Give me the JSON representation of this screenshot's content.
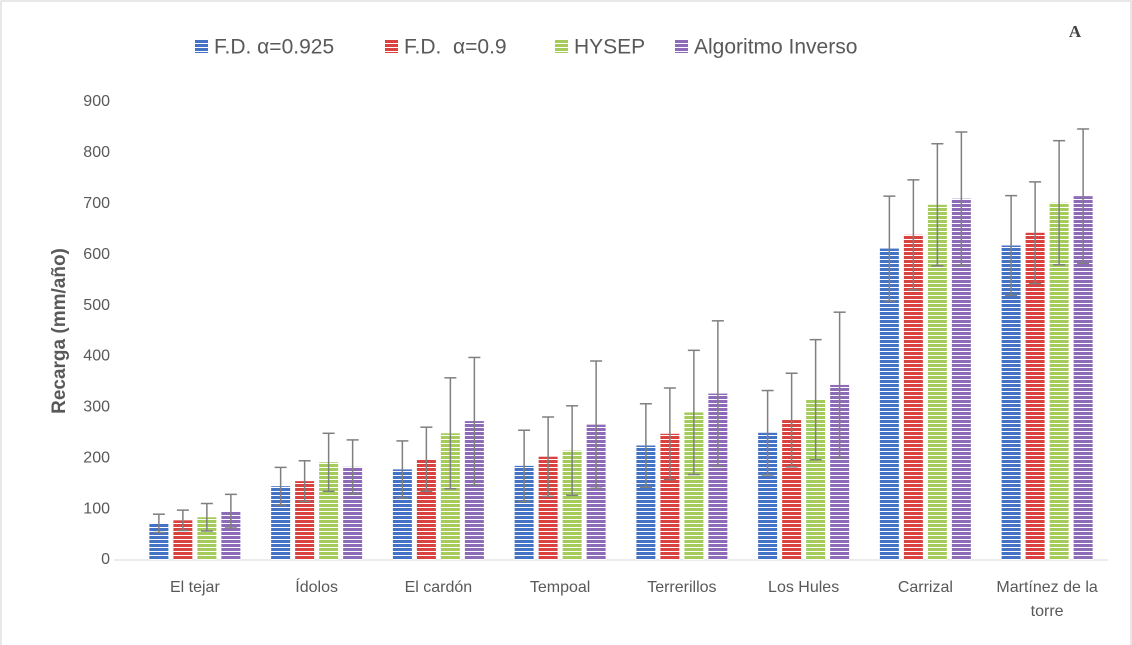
{
  "chart_data": {
    "type": "bar",
    "annotation": "A",
    "y_label": "Recarga (mm/año)",
    "categories": [
      "El tejar",
      "Ídolos",
      "El cardón",
      "Tempoal",
      "Terrerillos",
      "Los Hules",
      "Carrizal",
      "Martínez de la torre"
    ],
    "series": [
      {
        "name": "F.D. α=0.925",
        "color": "#4472c4",
        "values": [
          72,
          145,
          178,
          185,
          225,
          250,
          612,
          618
        ],
        "errors": [
          18,
          37,
          56,
          70,
          82,
          83,
          103,
          98
        ]
      },
      {
        "name": "F.D.  α=0.9",
        "color": "#d9423f",
        "values": [
          78,
          155,
          198,
          203,
          248,
          275,
          639,
          643
        ],
        "errors": [
          20,
          40,
          63,
          78,
          90,
          92,
          108,
          100
        ]
      },
      {
        "name": "HYSEP",
        "color": "#a5cc5b",
        "values": [
          84,
          192,
          249,
          215,
          290,
          315,
          698,
          702
        ],
        "errors": [
          27,
          57,
          109,
          88,
          122,
          118,
          120,
          122
        ]
      },
      {
        "name": "Algoritmo Inverso",
        "color": "#8e6bb8",
        "values": [
          96,
          183,
          273,
          266,
          327,
          344,
          710,
          715
        ],
        "errors": [
          33,
          53,
          125,
          125,
          143,
          143,
          131,
          132
        ]
      }
    ],
    "ylim": [
      0,
      900
    ],
    "yticks": [
      0,
      100,
      200,
      300,
      400,
      500,
      600,
      700,
      800,
      900
    ],
    "grid": false,
    "legend": "top"
  }
}
